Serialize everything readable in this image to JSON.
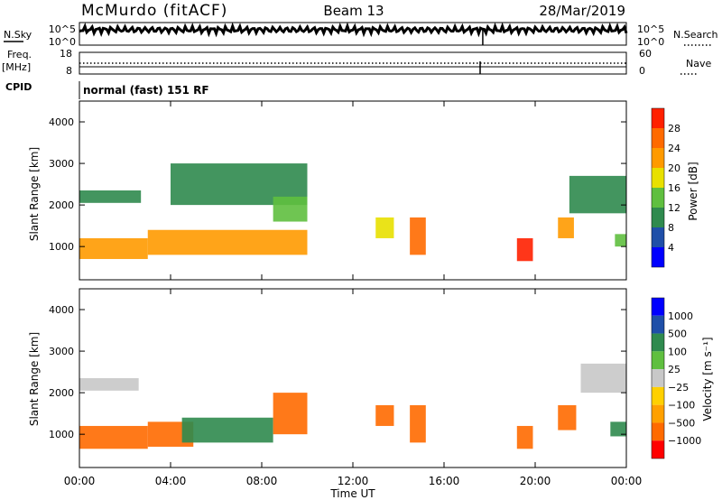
{
  "header": {
    "station": "McMurdo (fitACF)",
    "beam": "Beam 13",
    "date": "28/Mar/2019"
  },
  "panels": {
    "nsky_label": "N.Sky",
    "nsky_ticks": [
      "10^5",
      "10^0"
    ],
    "nsearch_label": "N.Search",
    "nsearch_ticks": [
      "10^5",
      "10^0"
    ],
    "freq_label": "Freq.",
    "freq_unit": "[MHz]",
    "freq_ticks": [
      "18",
      "8"
    ],
    "nave_label": "Nave",
    "nave_ticks": [
      "60",
      "0"
    ],
    "cpid_label": "CPID",
    "cpid_value": "normal (fast) 151 RF"
  },
  "colors": {
    "power": [
      "#0000ff",
      "#1f4fa8",
      "#2f8a4e",
      "#5fbf3f",
      "#e8e000",
      "#ff9a00",
      "#ff6a00",
      "#ff2000"
    ],
    "velocity": [
      "#ff0000",
      "#ff6a00",
      "#ffa000",
      "#ffd000",
      "#c8c8c8",
      "#5fbf3f",
      "#2f8a4e",
      "#1f4fa8",
      "#0000ff"
    ]
  },
  "chart_data": [
    {
      "type": "heatmap",
      "name": "power",
      "ylabel": "Slant Range [km]",
      "yticks": [
        "1000",
        "2000",
        "3000",
        "4000"
      ],
      "ylim": [
        200,
        4500
      ],
      "colorbar_label": "Power [dB]",
      "colorbar_ticks": [
        "4",
        "8",
        "12",
        "16",
        "20",
        "24",
        "28"
      ],
      "colorbar_range": [
        0,
        32
      ],
      "regions": [
        {
          "t": [
            0.0,
            3.0
          ],
          "r": [
            700,
            1200
          ],
          "value": 20
        },
        {
          "t": [
            3.0,
            10.0
          ],
          "r": [
            800,
            1400
          ],
          "value": 22
        },
        {
          "t": [
            0.0,
            2.7
          ],
          "r": [
            2050,
            2350
          ],
          "value": 8
        },
        {
          "t": [
            4.0,
            10.0
          ],
          "r": [
            2000,
            3000
          ],
          "value": 10
        },
        {
          "t": [
            8.5,
            10.0
          ],
          "r": [
            1600,
            2200
          ],
          "value": 12
        },
        {
          "t": [
            13.0,
            13.8
          ],
          "r": [
            1200,
            1700
          ],
          "value": 18
        },
        {
          "t": [
            14.5,
            15.2
          ],
          "r": [
            800,
            1700
          ],
          "value": 24
        },
        {
          "t": [
            19.2,
            19.9
          ],
          "r": [
            650,
            1200
          ],
          "value": 28
        },
        {
          "t": [
            21.0,
            21.7
          ],
          "r": [
            1200,
            1700
          ],
          "value": 20
        },
        {
          "t": [
            21.5,
            24.0
          ],
          "r": [
            1800,
            2700
          ],
          "value": 8
        },
        {
          "t": [
            23.5,
            24.0
          ],
          "r": [
            1000,
            1300
          ],
          "value": 12
        }
      ]
    },
    {
      "type": "heatmap",
      "name": "velocity",
      "ylabel": "Slant Range [km]",
      "yticks": [
        "1000",
        "2000",
        "3000",
        "4000"
      ],
      "ylim": [
        200,
        4500
      ],
      "colorbar_label": "Velocity [m s⁻¹]",
      "colorbar_ticks": [
        "1000",
        "500",
        "100",
        "25",
        "−25",
        "−100",
        "−500",
        "−1000"
      ],
      "regions": [
        {
          "t": [
            0.0,
            3.0
          ],
          "r": [
            650,
            1200
          ],
          "value": -200
        },
        {
          "t": [
            3.0,
            5.0
          ],
          "r": [
            700,
            1300
          ],
          "value": -300
        },
        {
          "t": [
            4.5,
            8.5
          ],
          "r": [
            800,
            1400
          ],
          "value": 300
        },
        {
          "t": [
            8.5,
            10.0
          ],
          "r": [
            1000,
            2000
          ],
          "value": -150
        },
        {
          "t": [
            0.0,
            2.6
          ],
          "r": [
            2050,
            2350
          ],
          "value": 0
        },
        {
          "t": [
            13.0,
            13.8
          ],
          "r": [
            1200,
            1700
          ],
          "value": -300
        },
        {
          "t": [
            14.5,
            15.2
          ],
          "r": [
            800,
            1700
          ],
          "value": -300
        },
        {
          "t": [
            19.2,
            19.9
          ],
          "r": [
            650,
            1200
          ],
          "value": -300
        },
        {
          "t": [
            21.0,
            21.8
          ],
          "r": [
            1100,
            1700
          ],
          "value": -300
        },
        {
          "t": [
            22.0,
            24.0
          ],
          "r": [
            2000,
            2700
          ],
          "value": 0
        },
        {
          "t": [
            23.3,
            24.0
          ],
          "r": [
            950,
            1300
          ],
          "value": 300
        }
      ]
    }
  ],
  "xaxis": {
    "ticks": [
      "00:00",
      "04:00",
      "08:00",
      "12:00",
      "16:00",
      "20:00",
      "00:00"
    ],
    "tick_hours": [
      0,
      4,
      8,
      12,
      16,
      20,
      24
    ],
    "label": "Time UT"
  }
}
